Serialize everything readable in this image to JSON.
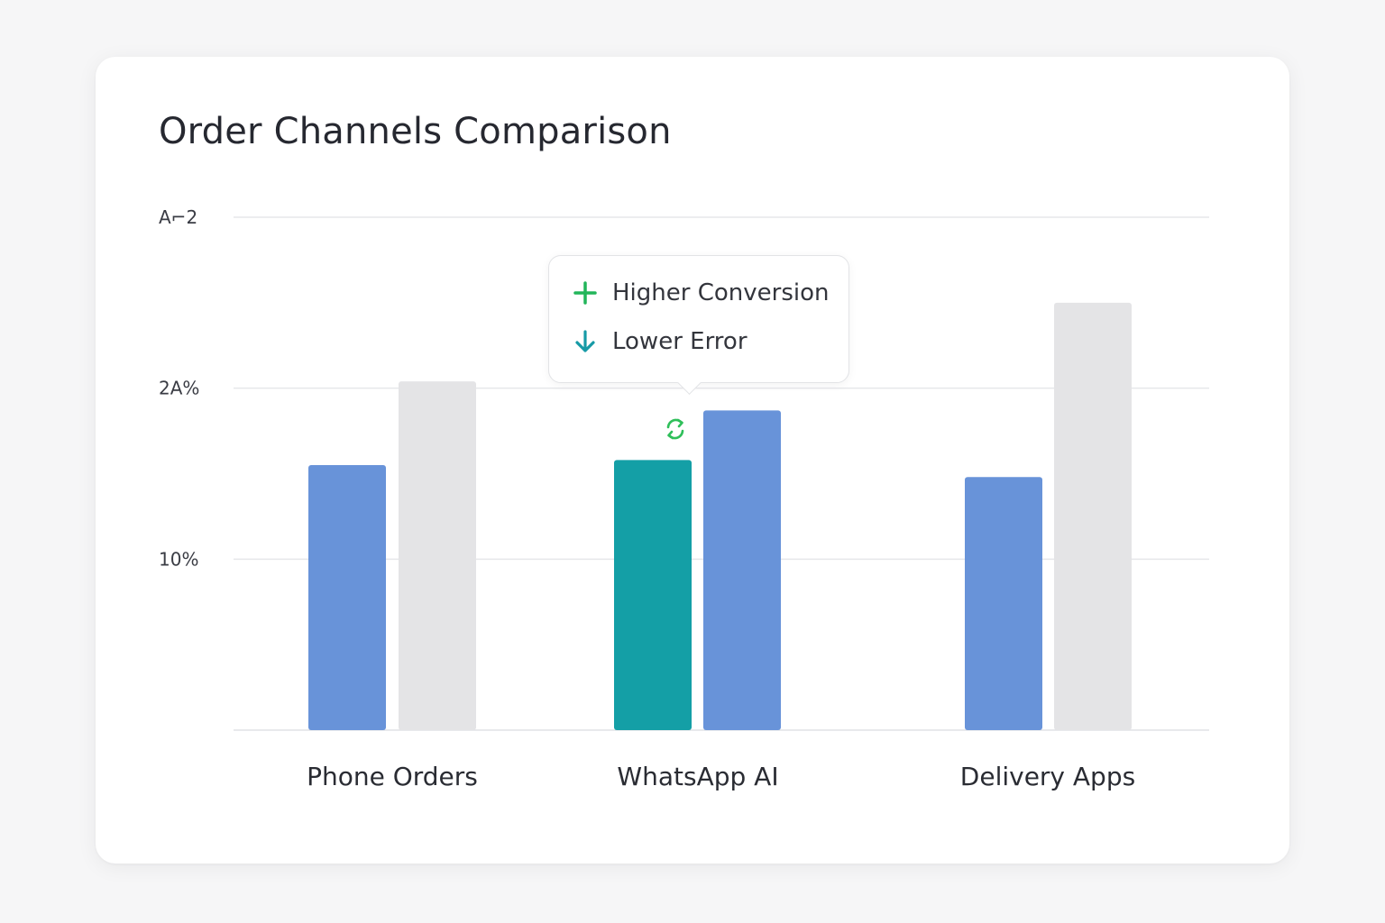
{
  "title": "Order Channels Comparison",
  "tooltip": {
    "items": [
      {
        "label": "Higher Conversion",
        "icon": "plus-icon",
        "color": "#22b55a"
      },
      {
        "label": "Lower Error",
        "icon": "arrow-down-icon",
        "color": "#169aa6"
      }
    ]
  },
  "annotation_icon": {
    "icon": "sync-icon",
    "color": "#2fbf5a"
  },
  "colors": {
    "blue": "#6893d9",
    "gray": "#e4e4e6",
    "teal": "#149fa6"
  },
  "chart_data": {
    "type": "bar",
    "title": "Order Channels Comparison",
    "categories": [
      "Phone Orders",
      "WhatsApp AI",
      "Delivery Apps"
    ],
    "y_tick_labels": [
      "10%",
      "2A%",
      "A⌐2"
    ],
    "y_tick_values": [
      10,
      20,
      30
    ],
    "ylim": [
      0,
      30
    ],
    "grid": true,
    "bars": [
      {
        "category": "Phone Orders",
        "value": 15.5,
        "color": "#6893d9"
      },
      {
        "category": "Phone Orders",
        "value": 20.4,
        "color": "#e4e4e6"
      },
      {
        "category": "WhatsApp AI",
        "value": 15.8,
        "color": "#149fa6"
      },
      {
        "category": "WhatsApp AI",
        "value": 18.7,
        "color": "#6893d9"
      },
      {
        "category": "Delivery Apps",
        "value": 14.8,
        "color": "#6893d9"
      },
      {
        "category": "Delivery Apps",
        "value": 25.0,
        "color": "#e4e4e6"
      }
    ]
  }
}
